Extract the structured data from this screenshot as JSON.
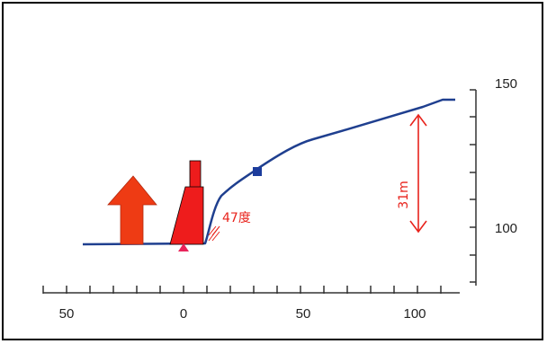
{
  "colors": {
    "profile_line": "#1f3f8f",
    "house_red": "#ee1c1c",
    "arrow_orange": "#ee3b14",
    "axis": "#333333",
    "annotation_red": "#e8231c",
    "marker_blue": "#1c3c9c",
    "marker_pink": "#e8245a"
  },
  "x_axis": {
    "ticks": [
      {
        "value": -50,
        "label": "50"
      },
      {
        "value": 0,
        "label": "0"
      },
      {
        "value": 50,
        "label": "50"
      },
      {
        "value": 100,
        "label": "100"
      }
    ]
  },
  "y_axis": {
    "ticks": [
      {
        "value": 150,
        "label": "150"
      },
      {
        "value": 100,
        "label": "100"
      }
    ]
  },
  "annotations": {
    "slope_angle": "47度",
    "height_diff": "31m"
  },
  "icons": {
    "evacuation_arrow": "up-arrow-icon",
    "building": "building-icon"
  }
}
